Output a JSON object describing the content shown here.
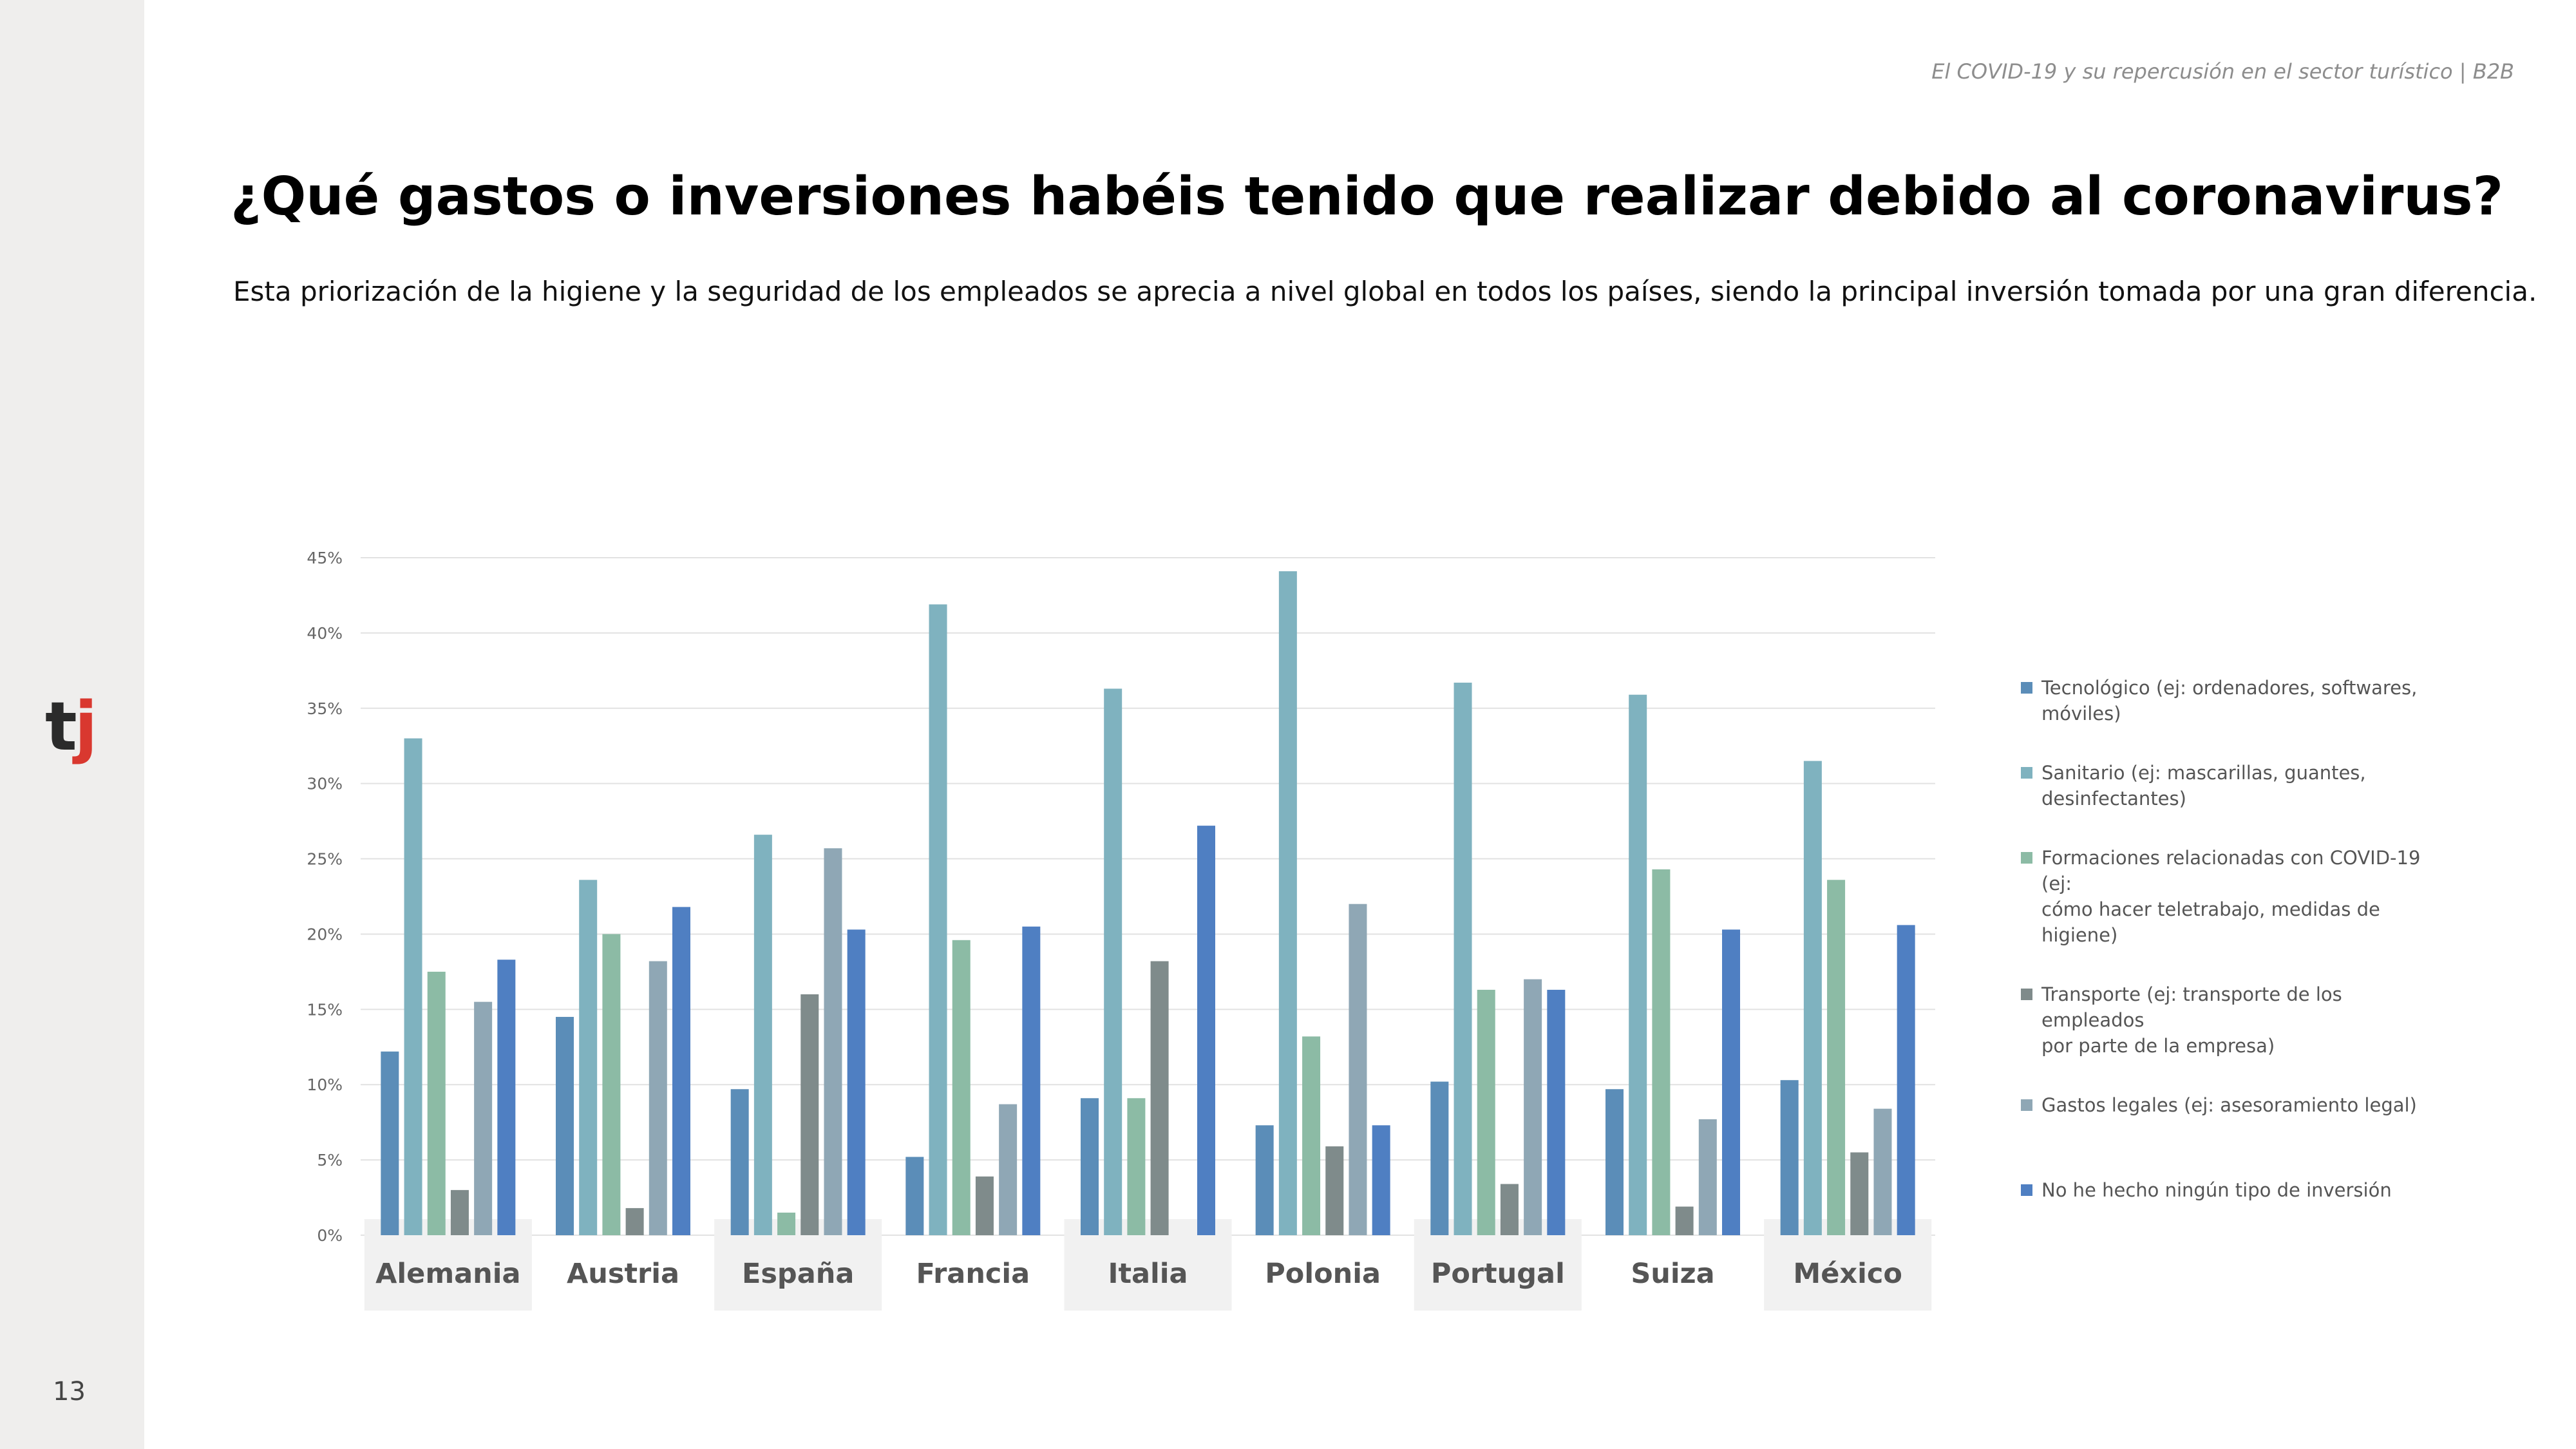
{
  "header": {
    "caption": "El COVID-19 y su repercusión en el sector turístico | B2B"
  },
  "logo": {
    "part1": "t",
    "part2": "j"
  },
  "page_number": "13",
  "title": "¿Qué gastos o inversiones habéis tenido que realizar debido al coronavirus?",
  "subtitle": "Esta priorización de la higiene y la seguridad de los empleados se aprecia a nivel global en todos los países, siendo la principal inversión tomada por una gran diferencia.",
  "colors": {
    "tecnologico": "#5b8db8",
    "sanitario": "#7fb2bf",
    "formaciones": "#8cbba5",
    "transporte": "#7f8b8b",
    "legales": "#8fa7b5",
    "ninguno": "#4f7fc2",
    "category_band": "#f1f1f1",
    "grid": "#e2e2e2"
  },
  "chart_data": {
    "type": "bar",
    "title": "",
    "xlabel": "",
    "ylabel": "",
    "ylim": [
      0,
      45
    ],
    "yticks": [
      0,
      5,
      10,
      15,
      20,
      25,
      30,
      35,
      40,
      45
    ],
    "ytick_labels": [
      "0%",
      "5%",
      "10%",
      "15%",
      "20%",
      "25%",
      "30%",
      "35%",
      "40%",
      "45%"
    ],
    "grid": true,
    "legend_position": "right",
    "categories": [
      "Alemania",
      "Austria",
      "España",
      "Francia",
      "Italia",
      "Polonia",
      "Portugal",
      "Suiza",
      "México"
    ],
    "series": [
      {
        "name": "Tecnológico (ej: ordenadores, softwares, móviles)",
        "legend_lines": [
          "Tecnológico (ej: ordenadores, softwares,",
          "móviles)"
        ],
        "color_key": "tecnologico",
        "values": [
          12.2,
          14.5,
          9.7,
          5.2,
          9.1,
          7.3,
          10.2,
          9.7,
          10.3
        ]
      },
      {
        "name": "Sanitario (ej: mascarillas, guantes, desinfectantes)",
        "legend_lines": [
          "Sanitario (ej: mascarillas, guantes,",
          "desinfectantes)"
        ],
        "color_key": "sanitario",
        "values": [
          33.0,
          23.6,
          26.6,
          41.9,
          36.3,
          44.1,
          36.7,
          35.9,
          31.5
        ]
      },
      {
        "name": "Formaciones relacionadas con COVID-19 (ej: cómo hacer teletrabajo, medidas de higiene)",
        "legend_lines": [
          "Formaciones relacionadas con COVID-19 (ej:",
          "cómo hacer teletrabajo, medidas de higiene)"
        ],
        "color_key": "formaciones",
        "values": [
          17.5,
          20.0,
          1.5,
          19.6,
          9.1,
          13.2,
          16.3,
          24.3,
          23.6
        ]
      },
      {
        "name": "Transporte (ej: transporte de los empleados por parte de la empresa)",
        "legend_lines": [
          "Transporte (ej: transporte de los empleados",
          "por parte de la empresa)"
        ],
        "color_key": "transporte",
        "values": [
          3.0,
          1.8,
          16.0,
          3.9,
          18.2,
          5.9,
          3.4,
          1.9,
          5.5
        ]
      },
      {
        "name": "Gastos legales (ej: asesoramiento legal)",
        "legend_lines": [
          "Gastos legales (ej: asesoramiento legal)"
        ],
        "color_key": "legales",
        "values": [
          15.5,
          18.2,
          25.7,
          8.7,
          0,
          22.0,
          17.0,
          7.7,
          8.4
        ]
      },
      {
        "name": "No he hecho ningún tipo de inversión",
        "legend_lines": [
          "No he hecho ningún tipo de inversión"
        ],
        "color_key": "ninguno",
        "values": [
          18.3,
          21.8,
          20.3,
          20.5,
          27.2,
          7.3,
          16.3,
          20.3,
          20.6
        ]
      }
    ]
  }
}
